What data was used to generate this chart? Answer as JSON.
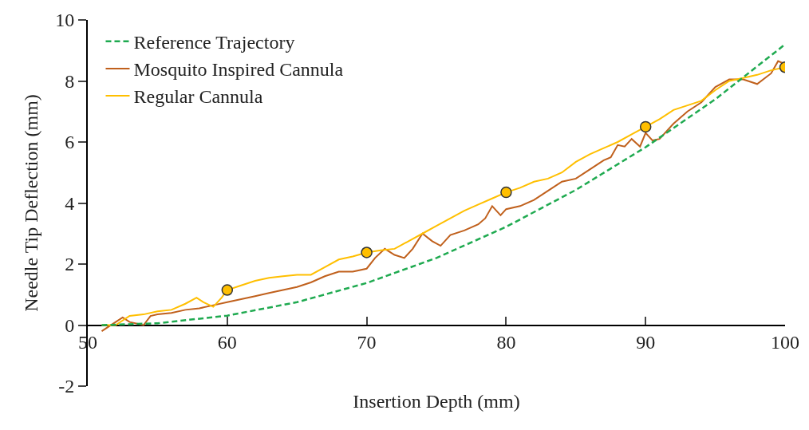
{
  "chart_data": {
    "type": "line",
    "xlabel": "Insertion Depth (mm)",
    "ylabel": "Needle Tip Deflection (mm)",
    "xlim": [
      50,
      100
    ],
    "xticks": [
      50,
      60,
      70,
      80,
      90,
      100
    ],
    "ylim": [
      -2,
      10
    ],
    "yticks": [
      -2,
      0,
      2,
      4,
      6,
      8,
      10
    ],
    "grid": false,
    "legend": "top left",
    "series": [
      {
        "name": "Reference Trajectory",
        "color": "#1faa50",
        "line_style": "dashed",
        "x": [
          51,
          55,
          60,
          65,
          70,
          75,
          80,
          85,
          90,
          95,
          100
        ],
        "values": [
          0,
          0.06,
          0.31,
          0.75,
          1.38,
          2.2,
          3.22,
          4.43,
          5.83,
          7.4,
          9.2
        ]
      },
      {
        "name": "Mosquito Inspired Cannula",
        "color": "#c0601c",
        "line_style": "solid",
        "x": [
          51,
          52,
          52.5,
          53,
          54,
          54.5,
          55,
          56,
          57,
          58,
          59,
          60,
          61,
          62,
          63,
          64,
          65,
          66,
          67,
          68,
          69,
          70,
          70.6,
          71.3,
          72,
          72.7,
          73.3,
          74,
          74.7,
          75.3,
          76,
          77,
          78,
          78.5,
          79,
          79.6,
          80,
          81,
          82,
          83,
          84,
          85,
          86,
          87,
          87.5,
          88,
          88.5,
          89,
          89.6,
          90,
          90.5,
          91,
          92,
          93,
          94,
          95,
          96,
          97,
          98,
          99,
          99.5,
          100
        ],
        "values": [
          -0.2,
          0.1,
          0.25,
          0.1,
          0.0,
          0.3,
          0.35,
          0.4,
          0.5,
          0.55,
          0.65,
          0.75,
          0.85,
          0.95,
          1.05,
          1.15,
          1.25,
          1.4,
          1.6,
          1.75,
          1.75,
          1.85,
          2.2,
          2.5,
          2.3,
          2.2,
          2.5,
          3.0,
          2.75,
          2.6,
          2.95,
          3.1,
          3.3,
          3.5,
          3.9,
          3.6,
          3.8,
          3.9,
          4.1,
          4.4,
          4.7,
          4.8,
          5.1,
          5.4,
          5.5,
          5.9,
          5.85,
          6.1,
          5.85,
          6.3,
          6.05,
          6.1,
          6.6,
          7.0,
          7.3,
          7.8,
          8.05,
          8.05,
          7.9,
          8.25,
          8.65,
          8.55
        ]
      },
      {
        "name": "Regular Cannula",
        "color": "#ffbf00",
        "line_style": "solid",
        "x": [
          51,
          52,
          53,
          54,
          55,
          56,
          57,
          57.8,
          58.3,
          59,
          59.6,
          60,
          61,
          62,
          63,
          64,
          65,
          66,
          67,
          68,
          69,
          70,
          71,
          72,
          73,
          74,
          75,
          76,
          77,
          78,
          79,
          80,
          81,
          82,
          83,
          84,
          85,
          86,
          87,
          88,
          89,
          90,
          91,
          92,
          93,
          94,
          95,
          96,
          97,
          98,
          99,
          100
        ],
        "values": [
          0,
          0.0,
          0.3,
          0.35,
          0.45,
          0.5,
          0.7,
          0.9,
          0.75,
          0.6,
          0.9,
          1.15,
          1.3,
          1.45,
          1.55,
          1.6,
          1.65,
          1.65,
          1.9,
          2.15,
          2.25,
          2.38,
          2.45,
          2.5,
          2.75,
          3.0,
          3.25,
          3.5,
          3.75,
          3.95,
          4.15,
          4.35,
          4.5,
          4.7,
          4.8,
          5.0,
          5.35,
          5.6,
          5.8,
          6.0,
          6.25,
          6.5,
          6.75,
          7.05,
          7.2,
          7.35,
          7.7,
          8.0,
          8.1,
          8.2,
          8.35,
          8.45
        ]
      },
      {
        "type": "scatter",
        "marker": "circle",
        "color": "#ffbf00",
        "x": [
          60,
          70,
          80,
          90,
          100
        ],
        "values": [
          1.15,
          2.38,
          4.35,
          6.5,
          8.45
        ]
      }
    ]
  }
}
